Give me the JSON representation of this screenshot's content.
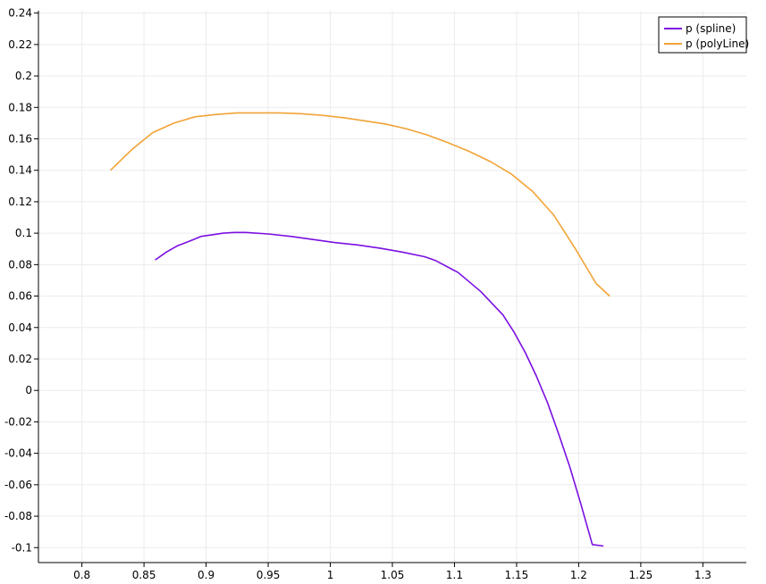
{
  "chart_data": {
    "type": "line",
    "title": "",
    "xlabel": "",
    "ylabel": "",
    "xlim": [
      0.765,
      1.335
    ],
    "ylim": [
      -0.1095,
      0.2415
    ],
    "xticks": [
      "0.8",
      "0.85",
      "0.9",
      "0.95",
      "1",
      "1.05",
      "1.1",
      "1.15",
      "1.2",
      "1.25",
      "1.3"
    ],
    "xtick_values": [
      0.8,
      0.85,
      0.9,
      0.95,
      1.0,
      1.05,
      1.1,
      1.15,
      1.2,
      1.25,
      1.3
    ],
    "yticks": [
      "0.24",
      "0.22",
      "0.2",
      "0.18",
      "0.16",
      "0.14",
      "0.12",
      "0.1",
      "0.08",
      "0.06",
      "0.04",
      "0.02",
      "0",
      "-0.02",
      "-0.04",
      "-0.06",
      "-0.08",
      "-0.1"
    ],
    "ytick_values": [
      0.24,
      0.22,
      0.2,
      0.18,
      0.16,
      0.14,
      0.12,
      0.1,
      0.08,
      0.06,
      0.04,
      0.02,
      0,
      -0.02,
      -0.04,
      -0.06,
      -0.08,
      -0.1
    ],
    "grid": true,
    "legend_position": "top-right",
    "series": [
      {
        "name": "p (spline)",
        "color": "#7b0fe0",
        "x": [
          0.859,
          0.868,
          0.877,
          0.887,
          0.896,
          0.905,
          0.914,
          0.923,
          0.932,
          0.95,
          0.968,
          0.986,
          1.004,
          1.022,
          1.04,
          1.058,
          1.076,
          1.085,
          1.103,
          1.121,
          1.139,
          1.148,
          1.157,
          1.166,
          1.175,
          1.184,
          1.193,
          1.202,
          1.211,
          1.22
        ],
        "y": [
          0.083,
          0.088,
          0.092,
          0.095,
          0.098,
          0.099,
          0.1,
          0.1005,
          0.1005,
          0.0995,
          0.098,
          0.096,
          0.094,
          0.0925,
          0.0905,
          0.088,
          0.085,
          0.0825,
          0.075,
          0.063,
          0.048,
          0.037,
          0.024,
          0.009,
          -0.008,
          -0.028,
          -0.049,
          -0.073,
          -0.098,
          -0.099
        ]
      },
      {
        "name": "p (polyLine)",
        "color": "#f2a336",
        "x": [
          0.823,
          0.84,
          0.857,
          0.874,
          0.891,
          0.908,
          0.925,
          0.942,
          0.959,
          0.976,
          0.993,
          1.01,
          1.027,
          1.044,
          1.061,
          1.078,
          1.095,
          1.112,
          1.129,
          1.146,
          1.163,
          1.18,
          1.197,
          1.214,
          1.225
        ],
        "y": [
          0.14,
          0.153,
          0.164,
          0.17,
          0.174,
          0.1755,
          0.1765,
          0.1765,
          0.1765,
          0.176,
          0.175,
          0.1735,
          0.1715,
          0.1695,
          0.1665,
          0.1625,
          0.1575,
          0.152,
          0.1455,
          0.1375,
          0.1265,
          0.1115,
          0.0905,
          0.068,
          0.06
        ]
      }
    ]
  }
}
